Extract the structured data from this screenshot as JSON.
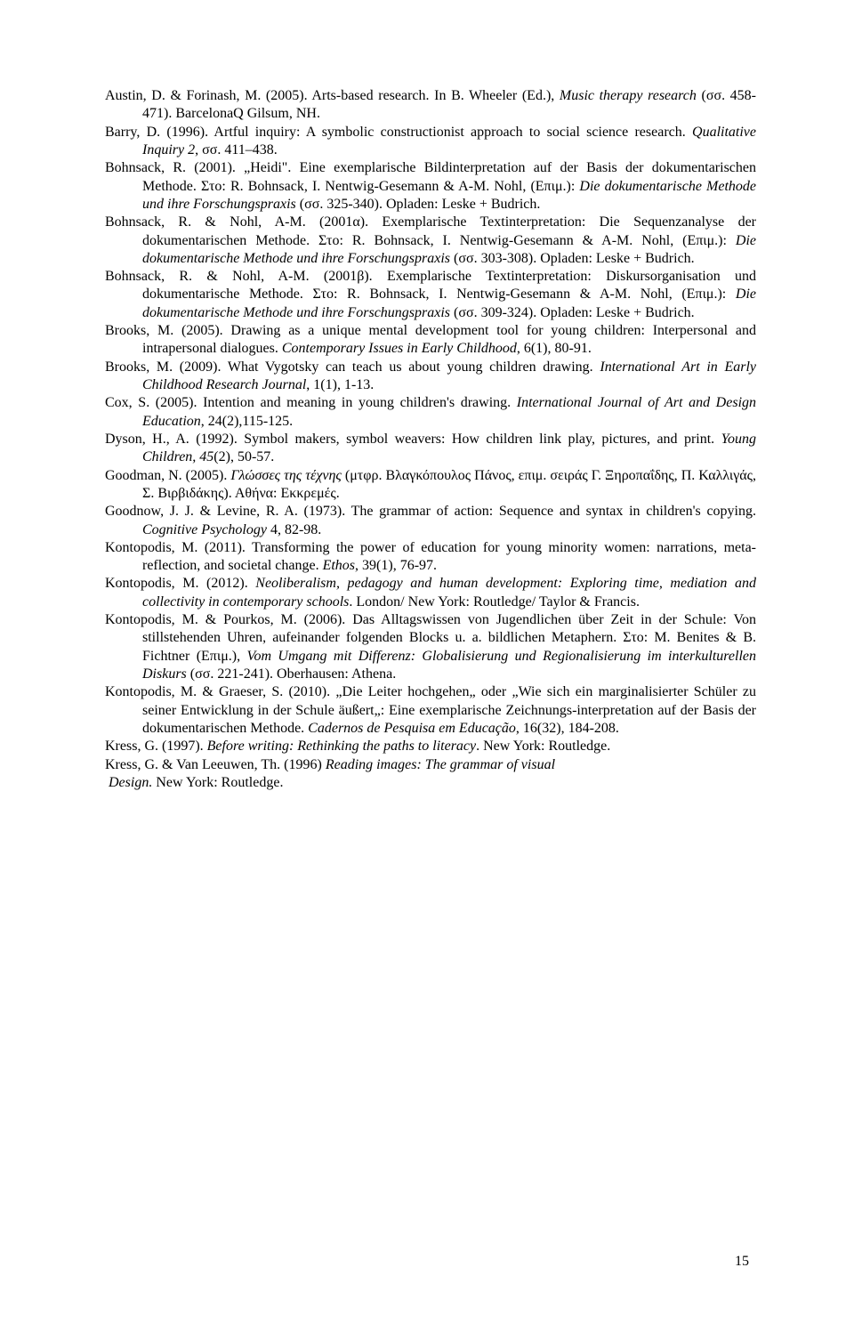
{
  "refs": [
    {
      "html": "Austin, D. &amp; Forinash, M. (2005). Arts-based research. In B. Wheeler (Ed.), <span class=\"italic\">Music therapy research</span> (σσ. 458-471). BarcelonaQ Gilsum, NH."
    },
    {
      "html": "Barry, D. (1996). Artful inquiry: A symbolic constructionist approach to social science research. <span class=\"italic\">Qualitative Inquiry 2</span>, σσ. 411–438."
    },
    {
      "html": "Bohnsack, R. (2001). „Heidi\". Eine exemplarische Bildinterpretation auf der Basis der dokumentarischen Methode. Στο: R. Bohnsack, I. Nentwig-Gesemann &amp; A-M. Nohl, (Επιμ.): <span class=\"italic\">Die dokumentarische Methode und ihre Forschungspraxis</span> (σσ. 325-340). Opladen: Leske + Budrich."
    },
    {
      "html": "Bohnsack, R. &amp; Nohl, A-M. (2001α). Exemplarische Textinterpretation: Die Sequenzanalyse der dokumentarischen Methode. Στο: R. Bohnsack, I. Nentwig-Gesemann &amp; A-M. Nohl, (Επιμ.): <span class=\"italic\">Die dokumentarische Methode und ihre Forschungspraxis</span> (σσ. 303-308). Opladen: Leske + Budrich."
    },
    {
      "html": "Bohnsack, R. &amp; Nohl, A-M. (2001β). Exemplarische Textinterpretation: Diskursorganisation und dokumentarische Methode. Στο: R. Bohnsack, I. Nentwig-Gesemann &amp; A-M. Nohl, (Επιμ.): <span class=\"italic\">Die dokumentarische Methode und ihre Forschungspraxis</span> (σσ. 309-324). Opladen: Leske + Budrich."
    },
    {
      "html": "Brooks, M. (2005). Drawing as a unique mental development tool for young children: Interpersonal and intrapersonal dialogues. <span class=\"italic\">Contemporary Issues in Early Childhood</span>, 6(1), 80-91."
    },
    {
      "html": "Brooks, M. (2009). What Vygotsky can teach us about young children drawing. <span class=\"italic\">International Art in Early Childhood Research Journal</span>, 1(1), 1-13."
    },
    {
      "html": "Cox, S. (2005). Intention and meaning in young children's drawing. <span class=\"italic\">International Journal of Art and Design Education</span>, 24(2),115-125."
    },
    {
      "html": "Dyson, H., A. (1992). Symbol makers, symbol weavers: How children link play, pictures, and print. <span class=\"italic\">Young Children, 45</span>(2), 50-57."
    },
    {
      "html": "Goodman, N. (2005). <span class=\"italic\">Γλώσσες της τέχνης</span> (μτφρ. Βλαγκόπουλος Πάνος, επιμ.  σειράς Γ. Ξηροπαΐδης, Π. Καλλιγάς, Σ. Βιρβιδάκης). Αθήνα: Εκκρεμές."
    },
    {
      "html": "Goodnow, J. J. &amp; Levine, R. A. (1973). The grammar of action: Sequence and syntax in&nbsp;children's copying. <span class=\"italic\">Cognitive Psychology</span> 4, 82-98."
    },
    {
      "html": "Kontopodis, M. (2011). Transforming the power of education for young minority women: narrations, meta-reflection, and societal change. <span class=\"italic\">Ethos</span>, 39(1), 76-97."
    },
    {
      "html": "Kontopodis, M. (2012). <span class=\"italic\">Neoliberalism, pedagogy and human development: Exploring time, mediation and collectivity in contemporary schools</span>. London/ New York: Routledge/ Taylor &amp; Francis."
    },
    {
      "html": "Kontopodis, M. &amp; Pourkos, M. (2006). Das Alltagswissen von Jugendlichen über Zeit in der Schule: Von stillstehenden Uhren, aufeinander folgenden Blocks u. a. bildlichen Metaphern. Στο: M. Benites &amp; B. Fichtner (Επιμ.), <span class=\"italic\">Vom Umgang mit Differenz: Globalisierung und Regionalisierung im interkulturellen Diskurs</span> (σσ. 221-241). Oberhausen: Athena."
    },
    {
      "html": "Kontopodis, M. &amp; Graeser, S. (2010). „Die Leiter hochgehen„ oder „Wie sich ein marginalisierter Schüler zu seiner Entwicklung in der Schule äußert„: Eine exemplarische Zeichnungs-interpretation auf der Basis der dokumentarischen Methode. <span class=\"italic\">Cadernos de Pesquisa em Educação</span>, 16(32), 184-208."
    },
    {
      "html": "Kress, G. (1997). <span class=\"italic\">Before writing: Rethinking the paths to literacy</span>. New York: Routledge."
    },
    {
      "html": "Kress, G. &amp; Van Leeuwen, Th. (1996) <span class=\"italic\">Reading images: The grammar of visual </span>"
    },
    {
      "html": "&nbsp;<span class=\"italic\">Design.</span> New York: Routledge."
    }
  ],
  "pageNumber": "15"
}
